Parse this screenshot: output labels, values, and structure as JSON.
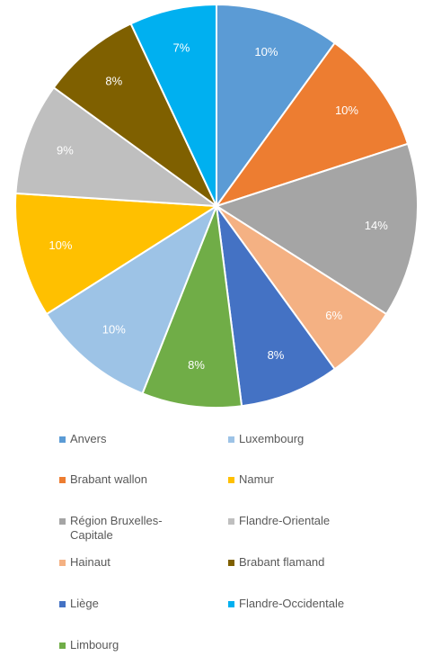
{
  "chart_data": {
    "type": "pie",
    "title": "",
    "slices": [
      {
        "label": "Anvers",
        "value": 10,
        "display": "10%",
        "color": "#5B9BD5"
      },
      {
        "label": "Brabant wallon",
        "value": 10,
        "display": "10%",
        "color": "#ED7D31"
      },
      {
        "label": "Région Bruxelles-Capitale",
        "value": 14,
        "display": "14%",
        "color": "#A5A5A5"
      },
      {
        "label": "Hainaut",
        "value": 6,
        "display": "6%",
        "color": "#F4B183"
      },
      {
        "label": "Liège",
        "value": 8,
        "display": "8%",
        "color": "#4472C4"
      },
      {
        "label": "Limbourg",
        "value": 8,
        "display": "8%",
        "color": "#70AD47"
      },
      {
        "label": "Luxembourg",
        "value": 10,
        "display": "10%",
        "color": "#9DC3E6"
      },
      {
        "label": "Namur",
        "value": 10,
        "display": "10%",
        "color": "#FFC000"
      },
      {
        "label": "Flandre-Orientale",
        "value": 9,
        "display": "9%",
        "color": "#BFBFBF"
      },
      {
        "label": "Brabant flamand",
        "value": 8,
        "display": "8%",
        "color": "#7F6000"
      },
      {
        "label": "Flandre-Occidentale",
        "value": 7,
        "display": "7%",
        "color": "#00B0F0"
      }
    ],
    "legend": {
      "placement": "bottom",
      "entries": [
        {
          "label": "Anvers",
          "color": "#5B9BD5"
        },
        {
          "label": "Luxembourg",
          "color": "#9DC3E6"
        },
        {
          "label": "Brabant wallon",
          "color": "#ED7D31"
        },
        {
          "label": "Namur",
          "color": "#FFC000"
        },
        {
          "label": "Région Bruxelles-Capitale",
          "color": "#A5A5A5"
        },
        {
          "label": "Flandre-Orientale",
          "color": "#BFBFBF"
        },
        {
          "label": "Hainaut",
          "color": "#F4B183"
        },
        {
          "label": "Brabant flamand",
          "color": "#7F6000"
        },
        {
          "label": "Liège",
          "color": "#4472C4"
        },
        {
          "label": "Flandre-Occidentale",
          "color": "#00B0F0"
        },
        {
          "label": "Limbourg",
          "color": "#70AD47"
        }
      ]
    }
  }
}
